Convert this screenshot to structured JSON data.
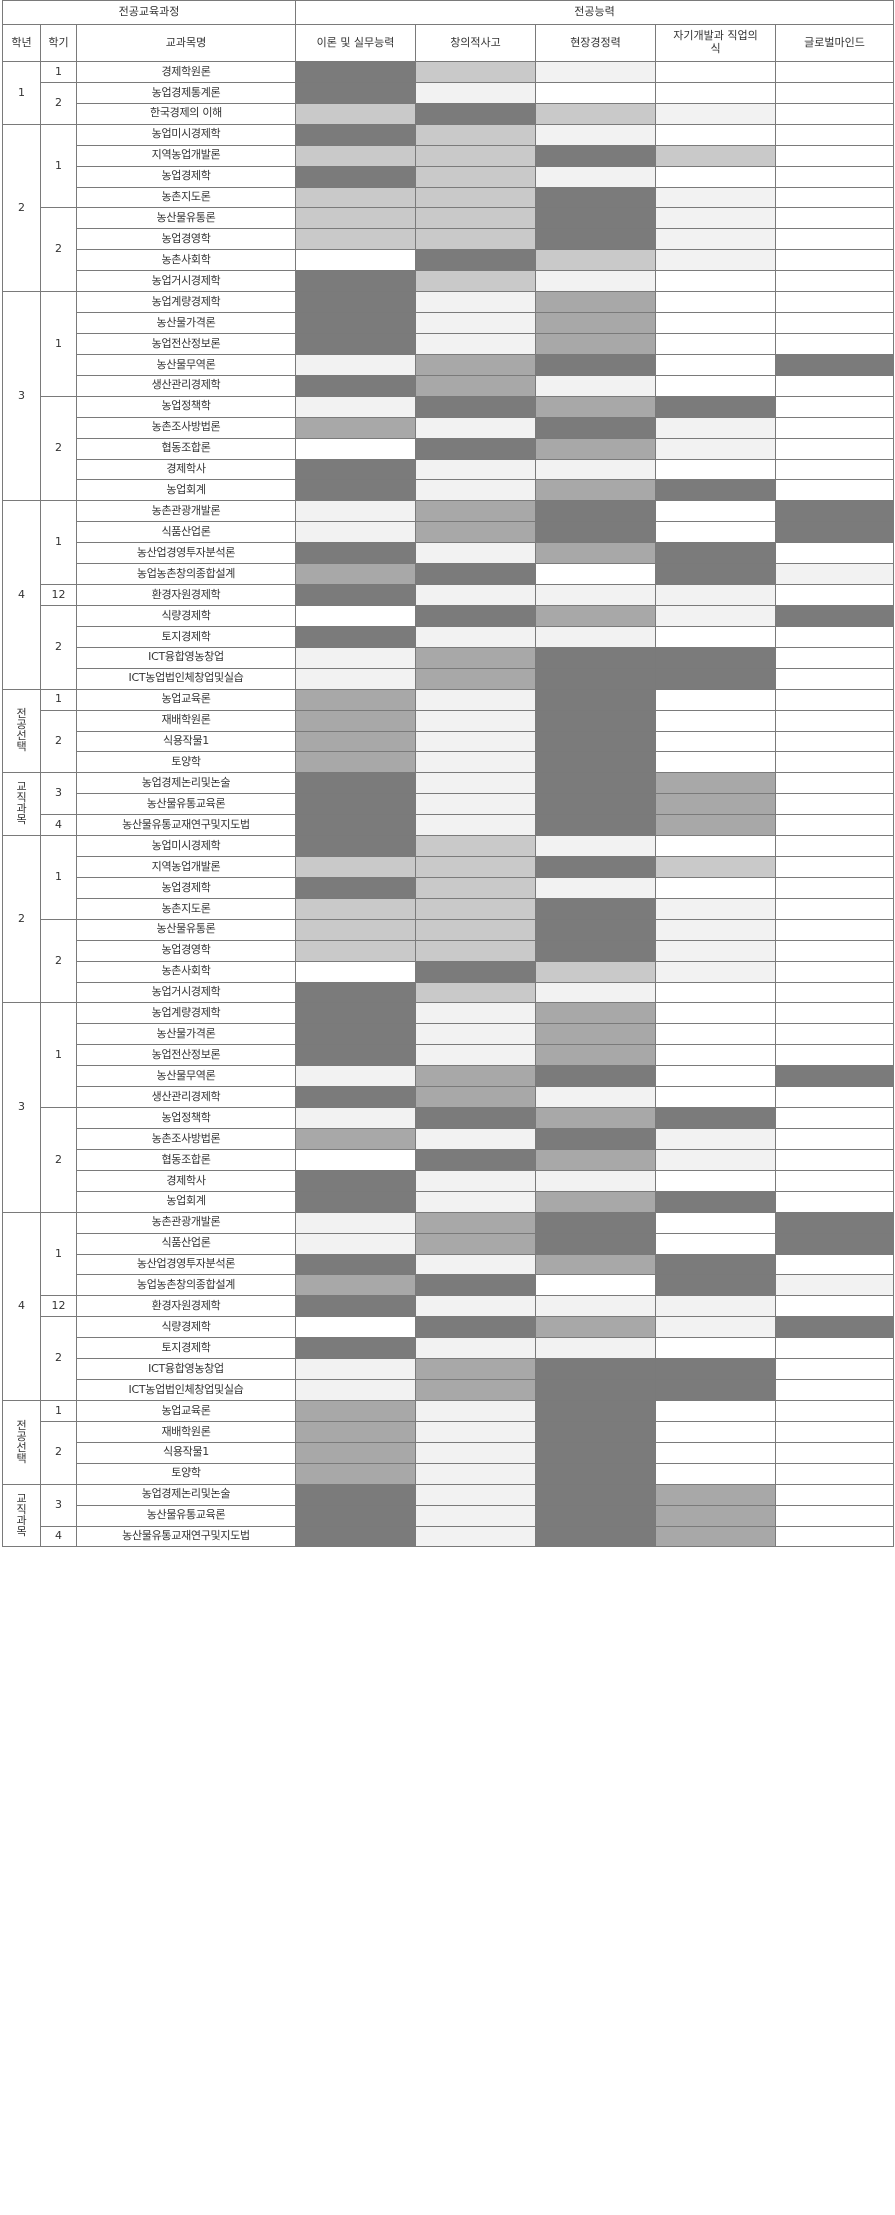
{
  "header": {
    "group_curriculum": "전공교육과정",
    "group_competency": "전공능력",
    "col_year": "학년",
    "col_semester": "학기",
    "col_subject": "교과목명",
    "competencies": [
      "이론 및 실무능력",
      "창의적사고",
      "현장경정력",
      "자기개발과 직업의식",
      "글로벌마인드"
    ]
  },
  "legend_levels": {
    "0": "#ffffff",
    "1": "#f2f2f2",
    "2": "#c9c9c9",
    "3": "#a8a8a8",
    "4": "#7b7b7b"
  },
  "groups": [
    {
      "year": "1",
      "sems": [
        {
          "sem": "1",
          "rows": [
            {
              "name": "경제학원론",
              "lv": [
                4,
                2,
                1,
                0,
                0
              ]
            }
          ]
        },
        {
          "sem": "2",
          "rows": [
            {
              "name": "농업경제통계론",
              "lv": [
                4,
                1,
                0,
                0,
                0
              ]
            },
            {
              "name": "한국경제의 이해",
              "lv": [
                2,
                4,
                2,
                1,
                0
              ]
            }
          ]
        }
      ]
    },
    {
      "year": "2",
      "sems": [
        {
          "sem": "1",
          "rows": [
            {
              "name": "농업미시경제학",
              "lv": [
                4,
                2,
                1,
                0,
                0
              ]
            },
            {
              "name": "지역농업개발론",
              "lv": [
                2,
                2,
                4,
                2,
                0
              ]
            },
            {
              "name": "농업경제학",
              "lv": [
                4,
                2,
                1,
                0,
                0
              ]
            },
            {
              "name": "농촌지도론",
              "lv": [
                2,
                2,
                4,
                1,
                0
              ]
            }
          ]
        },
        {
          "sem": "2",
          "rows": [
            {
              "name": "농산물유통론",
              "lv": [
                2,
                2,
                4,
                1,
                0
              ]
            },
            {
              "name": "농업경영학",
              "lv": [
                2,
                2,
                4,
                1,
                0
              ]
            },
            {
              "name": "농촌사회학",
              "lv": [
                0,
                4,
                2,
                1,
                0
              ]
            },
            {
              "name": "농업거시경제학",
              "lv": [
                4,
                2,
                1,
                0,
                0
              ]
            }
          ]
        }
      ]
    },
    {
      "year": "3",
      "sems": [
        {
          "sem": "1",
          "rows": [
            {
              "name": "농업계량경제학",
              "lv": [
                4,
                1,
                3,
                0,
                0
              ]
            },
            {
              "name": "농산물가격론",
              "lv": [
                4,
                1,
                3,
                0,
                0
              ]
            },
            {
              "name": "농업전산정보론",
              "lv": [
                4,
                1,
                3,
                0,
                0
              ]
            },
            {
              "name": "농산물무역론",
              "lv": [
                1,
                3,
                4,
                0,
                4
              ]
            },
            {
              "name": "생산관리경제학",
              "lv": [
                4,
                3,
                1,
                0,
                0
              ]
            }
          ]
        },
        {
          "sem": "2",
          "rows": [
            {
              "name": "농업정책학",
              "lv": [
                1,
                4,
                3,
                4,
                0
              ]
            },
            {
              "name": "농촌조사방법론",
              "lv": [
                3,
                1,
                4,
                1,
                0
              ]
            },
            {
              "name": "협동조합론",
              "lv": [
                0,
                4,
                3,
                1,
                0
              ]
            },
            {
              "name": "경제학사",
              "lv": [
                4,
                1,
                1,
                0,
                0
              ]
            },
            {
              "name": "농업회계",
              "lv": [
                4,
                1,
                3,
                4,
                0
              ]
            }
          ]
        }
      ]
    },
    {
      "year": "4",
      "sems": [
        {
          "sem": "1",
          "rows": [
            {
              "name": "농촌관광개발론",
              "lv": [
                1,
                3,
                4,
                0,
                4
              ]
            },
            {
              "name": "식품산업론",
              "lv": [
                1,
                3,
                4,
                0,
                4
              ]
            },
            {
              "name": "농산업경영투자분석론",
              "lv": [
                4,
                1,
                3,
                4,
                0
              ]
            },
            {
              "name": "농업농촌창의종합설계",
              "lv": [
                3,
                4,
                0,
                4,
                1
              ]
            }
          ]
        },
        {
          "sem": "12",
          "rows": [
            {
              "name": "환경자원경제학",
              "lv": [
                4,
                1,
                1,
                1,
                0
              ]
            }
          ]
        },
        {
          "sem": "2",
          "rows": [
            {
              "name": "식량경제학",
              "lv": [
                0,
                4,
                3,
                1,
                4
              ]
            },
            {
              "name": "토지경제학",
              "lv": [
                4,
                1,
                1,
                0,
                0
              ]
            },
            {
              "name": "ICT융합영농창업",
              "lv": [
                1,
                3,
                4,
                4,
                0
              ]
            },
            {
              "name": "ICT농업법인체창업및실습",
              "lv": [
                1,
                3,
                4,
                4,
                0
              ]
            }
          ]
        }
      ]
    },
    {
      "year": "전공선택",
      "vertical": true,
      "sems": [
        {
          "sem": "1",
          "rows": [
            {
              "name": "농업교육론",
              "lv": [
                3,
                1,
                4,
                0,
                0
              ]
            }
          ]
        },
        {
          "sem": "2",
          "rows": [
            {
              "name": "재배학원론",
              "lv": [
                3,
                1,
                4,
                0,
                0
              ]
            },
            {
              "name": "식용작물1",
              "lv": [
                3,
                1,
                4,
                0,
                0
              ]
            },
            {
              "name": "토양학",
              "lv": [
                3,
                1,
                4,
                0,
                0
              ]
            }
          ]
        }
      ]
    },
    {
      "year": "교직과목",
      "vertical": true,
      "sems": [
        {
          "sem": "3",
          "rows": [
            {
              "name": "농업경제논리및논술",
              "lv": [
                4,
                1,
                4,
                3,
                0
              ]
            },
            {
              "name": "농산물유통교육론",
              "lv": [
                4,
                1,
                4,
                3,
                0
              ]
            }
          ]
        },
        {
          "sem": "4",
          "rows": [
            {
              "name": "농산물유통교재연구및지도법",
              "lv": [
                4,
                1,
                4,
                3,
                0
              ]
            }
          ]
        }
      ]
    },
    {
      "year": "2",
      "sems": [
        {
          "sem": "1",
          "rows": [
            {
              "name": "농업미시경제학",
              "lv": [
                4,
                2,
                1,
                0,
                0
              ]
            },
            {
              "name": "지역농업개발론",
              "lv": [
                2,
                2,
                4,
                2,
                0
              ]
            },
            {
              "name": "농업경제학",
              "lv": [
                4,
                2,
                1,
                0,
                0
              ]
            },
            {
              "name": "농촌지도론",
              "lv": [
                2,
                2,
                4,
                1,
                0
              ]
            }
          ]
        },
        {
          "sem": "2",
          "rows": [
            {
              "name": "농산물유통론",
              "lv": [
                2,
                2,
                4,
                1,
                0
              ]
            },
            {
              "name": "농업경영학",
              "lv": [
                2,
                2,
                4,
                1,
                0
              ]
            },
            {
              "name": "농촌사회학",
              "lv": [
                0,
                4,
                2,
                1,
                0
              ]
            },
            {
              "name": "농업거시경제학",
              "lv": [
                4,
                2,
                1,
                0,
                0
              ]
            }
          ]
        }
      ]
    },
    {
      "year": "3",
      "sems": [
        {
          "sem": "1",
          "rows": [
            {
              "name": "농업계량경제학",
              "lv": [
                4,
                1,
                3,
                0,
                0
              ]
            },
            {
              "name": "농산물가격론",
              "lv": [
                4,
                1,
                3,
                0,
                0
              ]
            },
            {
              "name": "농업전산정보론",
              "lv": [
                4,
                1,
                3,
                0,
                0
              ]
            },
            {
              "name": "농산물무역론",
              "lv": [
                1,
                3,
                4,
                0,
                4
              ]
            },
            {
              "name": "생산관리경제학",
              "lv": [
                4,
                3,
                1,
                0,
                0
              ]
            }
          ]
        },
        {
          "sem": "2",
          "rows": [
            {
              "name": "농업정책학",
              "lv": [
                1,
                4,
                3,
                4,
                0
              ]
            },
            {
              "name": "농촌조사방법론",
              "lv": [
                3,
                1,
                4,
                1,
                0
              ]
            },
            {
              "name": "협동조합론",
              "lv": [
                0,
                4,
                3,
                1,
                0
              ]
            },
            {
              "name": "경제학사",
              "lv": [
                4,
                1,
                1,
                0,
                0
              ]
            },
            {
              "name": "농업회계",
              "lv": [
                4,
                1,
                3,
                4,
                0
              ]
            }
          ]
        }
      ]
    },
    {
      "year": "4",
      "sems": [
        {
          "sem": "1",
          "rows": [
            {
              "name": "농촌관광개발론",
              "lv": [
                1,
                3,
                4,
                0,
                4
              ]
            },
            {
              "name": "식품산업론",
              "lv": [
                1,
                3,
                4,
                0,
                4
              ]
            },
            {
              "name": "농산업경영투자분석론",
              "lv": [
                4,
                1,
                3,
                4,
                0
              ]
            },
            {
              "name": "농업농촌창의종합설계",
              "lv": [
                3,
                4,
                0,
                4,
                1
              ]
            }
          ]
        },
        {
          "sem": "12",
          "rows": [
            {
              "name": "환경자원경제학",
              "lv": [
                4,
                1,
                1,
                1,
                0
              ]
            }
          ]
        },
        {
          "sem": "2",
          "rows": [
            {
              "name": "식량경제학",
              "lv": [
                0,
                4,
                3,
                1,
                4
              ]
            },
            {
              "name": "토지경제학",
              "lv": [
                4,
                1,
                1,
                0,
                0
              ]
            },
            {
              "name": "ICT융합영농창업",
              "lv": [
                1,
                3,
                4,
                4,
                0
              ]
            },
            {
              "name": "ICT농업법인체창업및실습",
              "lv": [
                1,
                3,
                4,
                4,
                0
              ]
            }
          ]
        }
      ]
    },
    {
      "year": "전공선택",
      "vertical": true,
      "sems": [
        {
          "sem": "1",
          "rows": [
            {
              "name": "농업교육론",
              "lv": [
                3,
                1,
                4,
                0,
                0
              ]
            }
          ]
        },
        {
          "sem": "2",
          "rows": [
            {
              "name": "재배학원론",
              "lv": [
                3,
                1,
                4,
                0,
                0
              ]
            },
            {
              "name": "식용작물1",
              "lv": [
                3,
                1,
                4,
                0,
                0
              ]
            },
            {
              "name": "토양학",
              "lv": [
                3,
                1,
                4,
                0,
                0
              ]
            }
          ]
        }
      ]
    },
    {
      "year": "교직과목",
      "vertical": true,
      "sems": [
        {
          "sem": "3",
          "rows": [
            {
              "name": "농업경제논리및논술",
              "lv": [
                4,
                1,
                4,
                3,
                0
              ]
            },
            {
              "name": "농산물유통교육론",
              "lv": [
                4,
                1,
                4,
                3,
                0
              ]
            }
          ]
        },
        {
          "sem": "4",
          "rows": [
            {
              "name": "농산물유통교재연구및지도법",
              "lv": [
                4,
                1,
                4,
                3,
                0
              ]
            }
          ]
        }
      ]
    }
  ]
}
